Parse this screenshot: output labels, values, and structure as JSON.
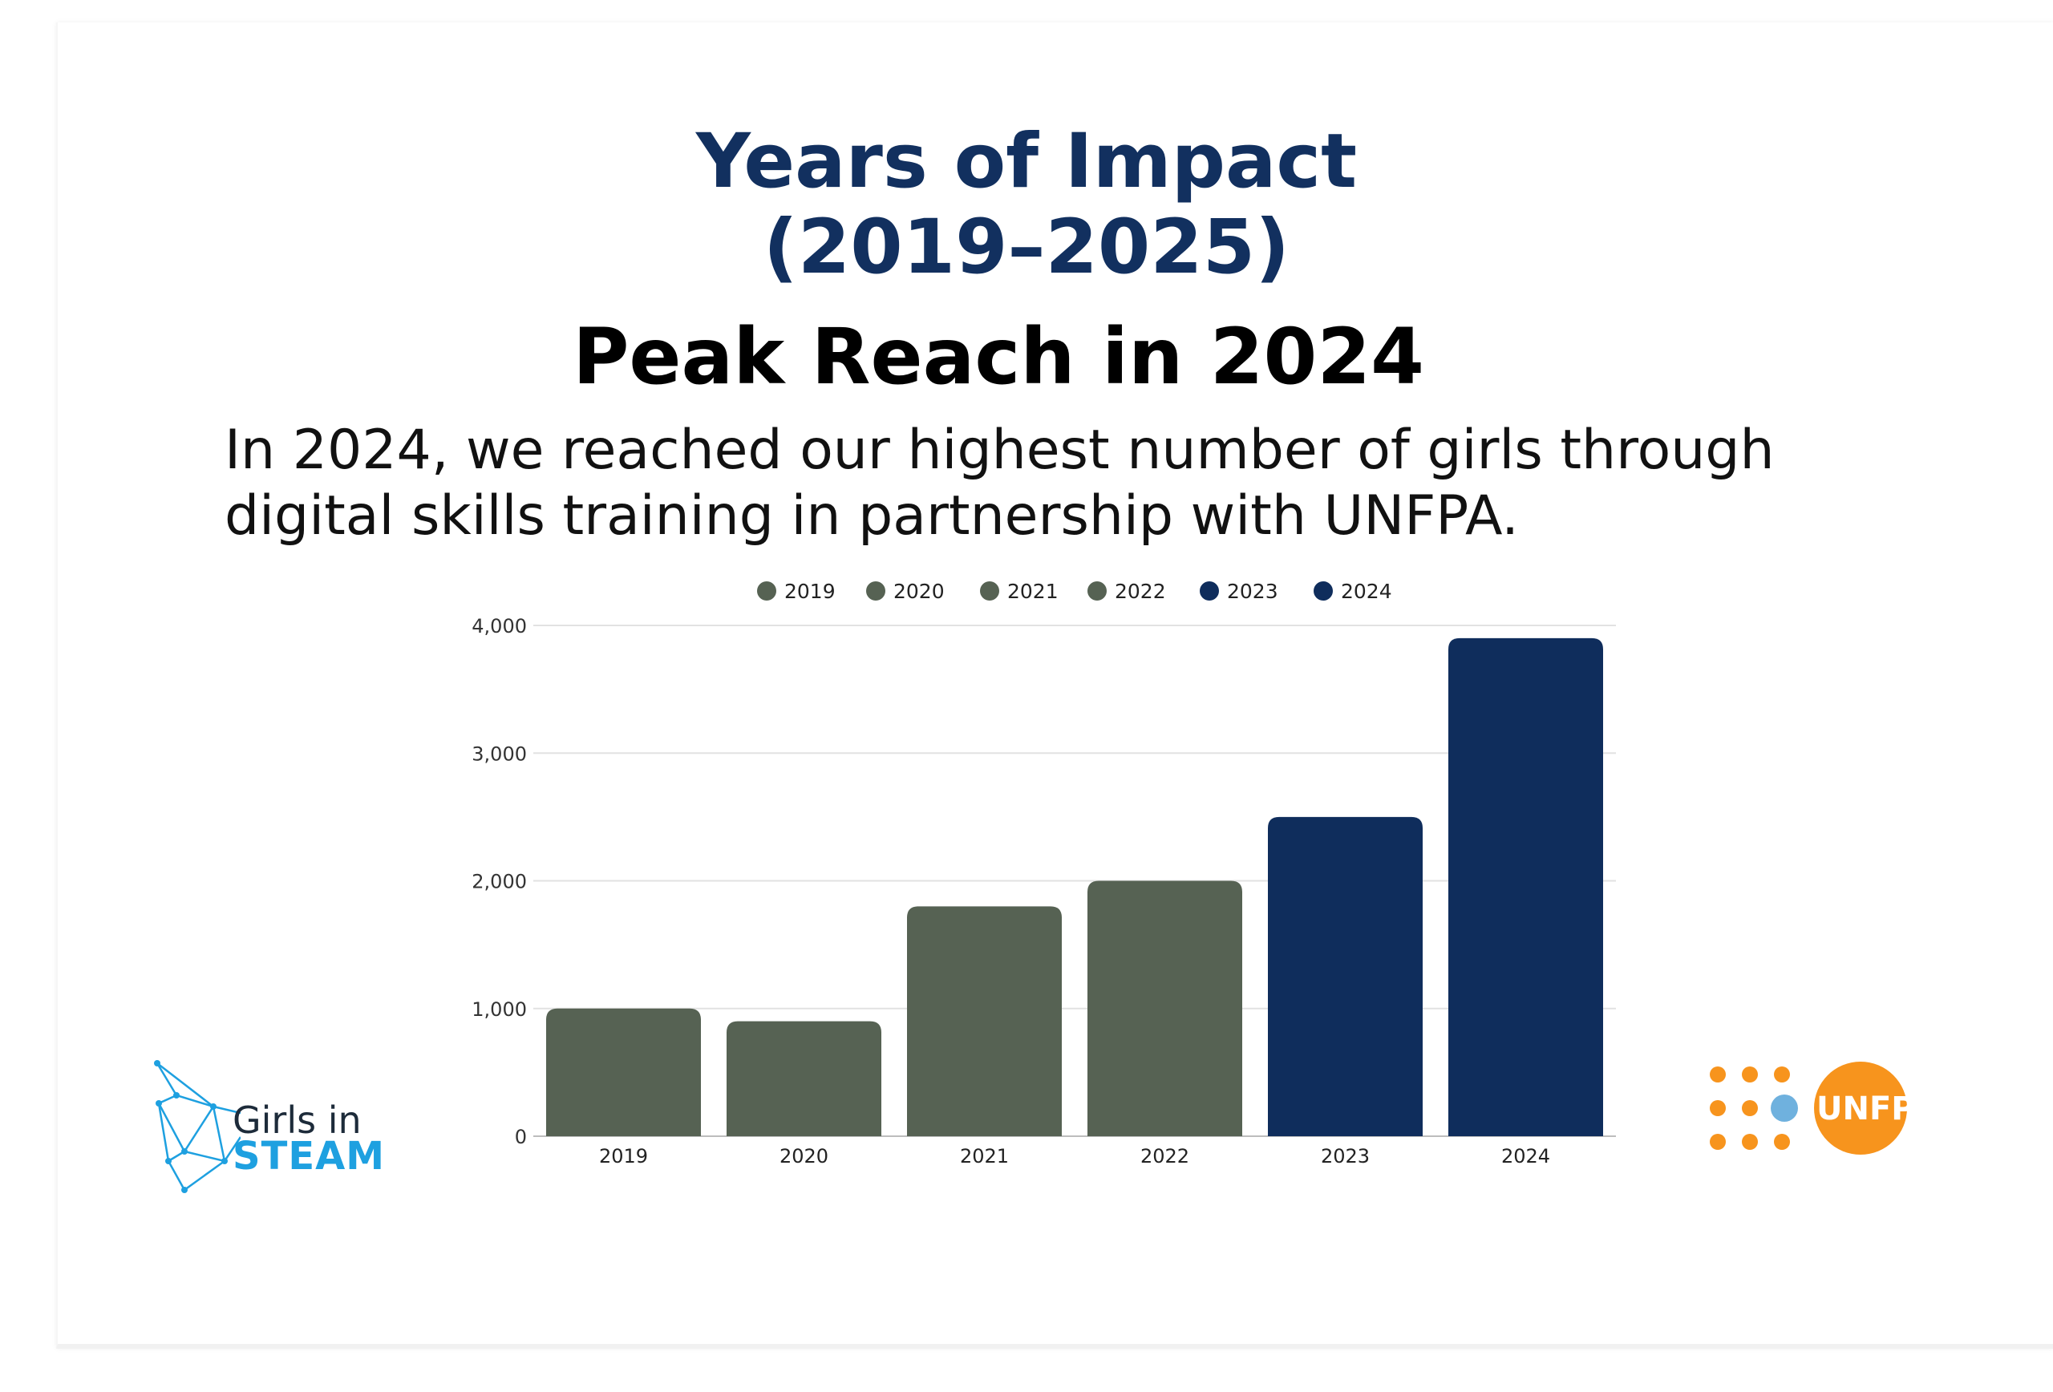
{
  "header": {
    "title_line1": "Years of Impact",
    "title_line2": "(2019–2025)",
    "subtitle": "Peak Reach in 2024",
    "description_line1": "In 2024, we reached our highest number of girls through",
    "description_line2": "digital skills training in partnership with UNFPA."
  },
  "colors": {
    "title": "#12305f",
    "green_bar": "#566253",
    "navy_bar": "#0f2d5c",
    "unfpa_orange": "#f7941d",
    "steam_blue": "#1ea0e0"
  },
  "chart_data": {
    "type": "bar",
    "categories": [
      "2019",
      "2020",
      "2021",
      "2022",
      "2023",
      "2024"
    ],
    "values": [
      1000,
      900,
      1800,
      2000,
      2500,
      3900
    ],
    "bar_colors": [
      "#566253",
      "#566253",
      "#566253",
      "#566253",
      "#0f2d5c",
      "#0f2d5c"
    ],
    "legend": [
      "2019",
      "2020",
      "2021",
      "2022",
      "2023",
      "2024"
    ],
    "legend_position": "top",
    "yticks": [
      "0",
      "1,000",
      "2,000",
      "3,000",
      "4,000"
    ],
    "ylim": [
      0,
      4000
    ],
    "grid": true,
    "title": "",
    "xlabel": "",
    "ylabel": ""
  },
  "logos": {
    "left_line1": "Girls in",
    "left_line2": "STEAM",
    "right_text": "UNFPA"
  }
}
